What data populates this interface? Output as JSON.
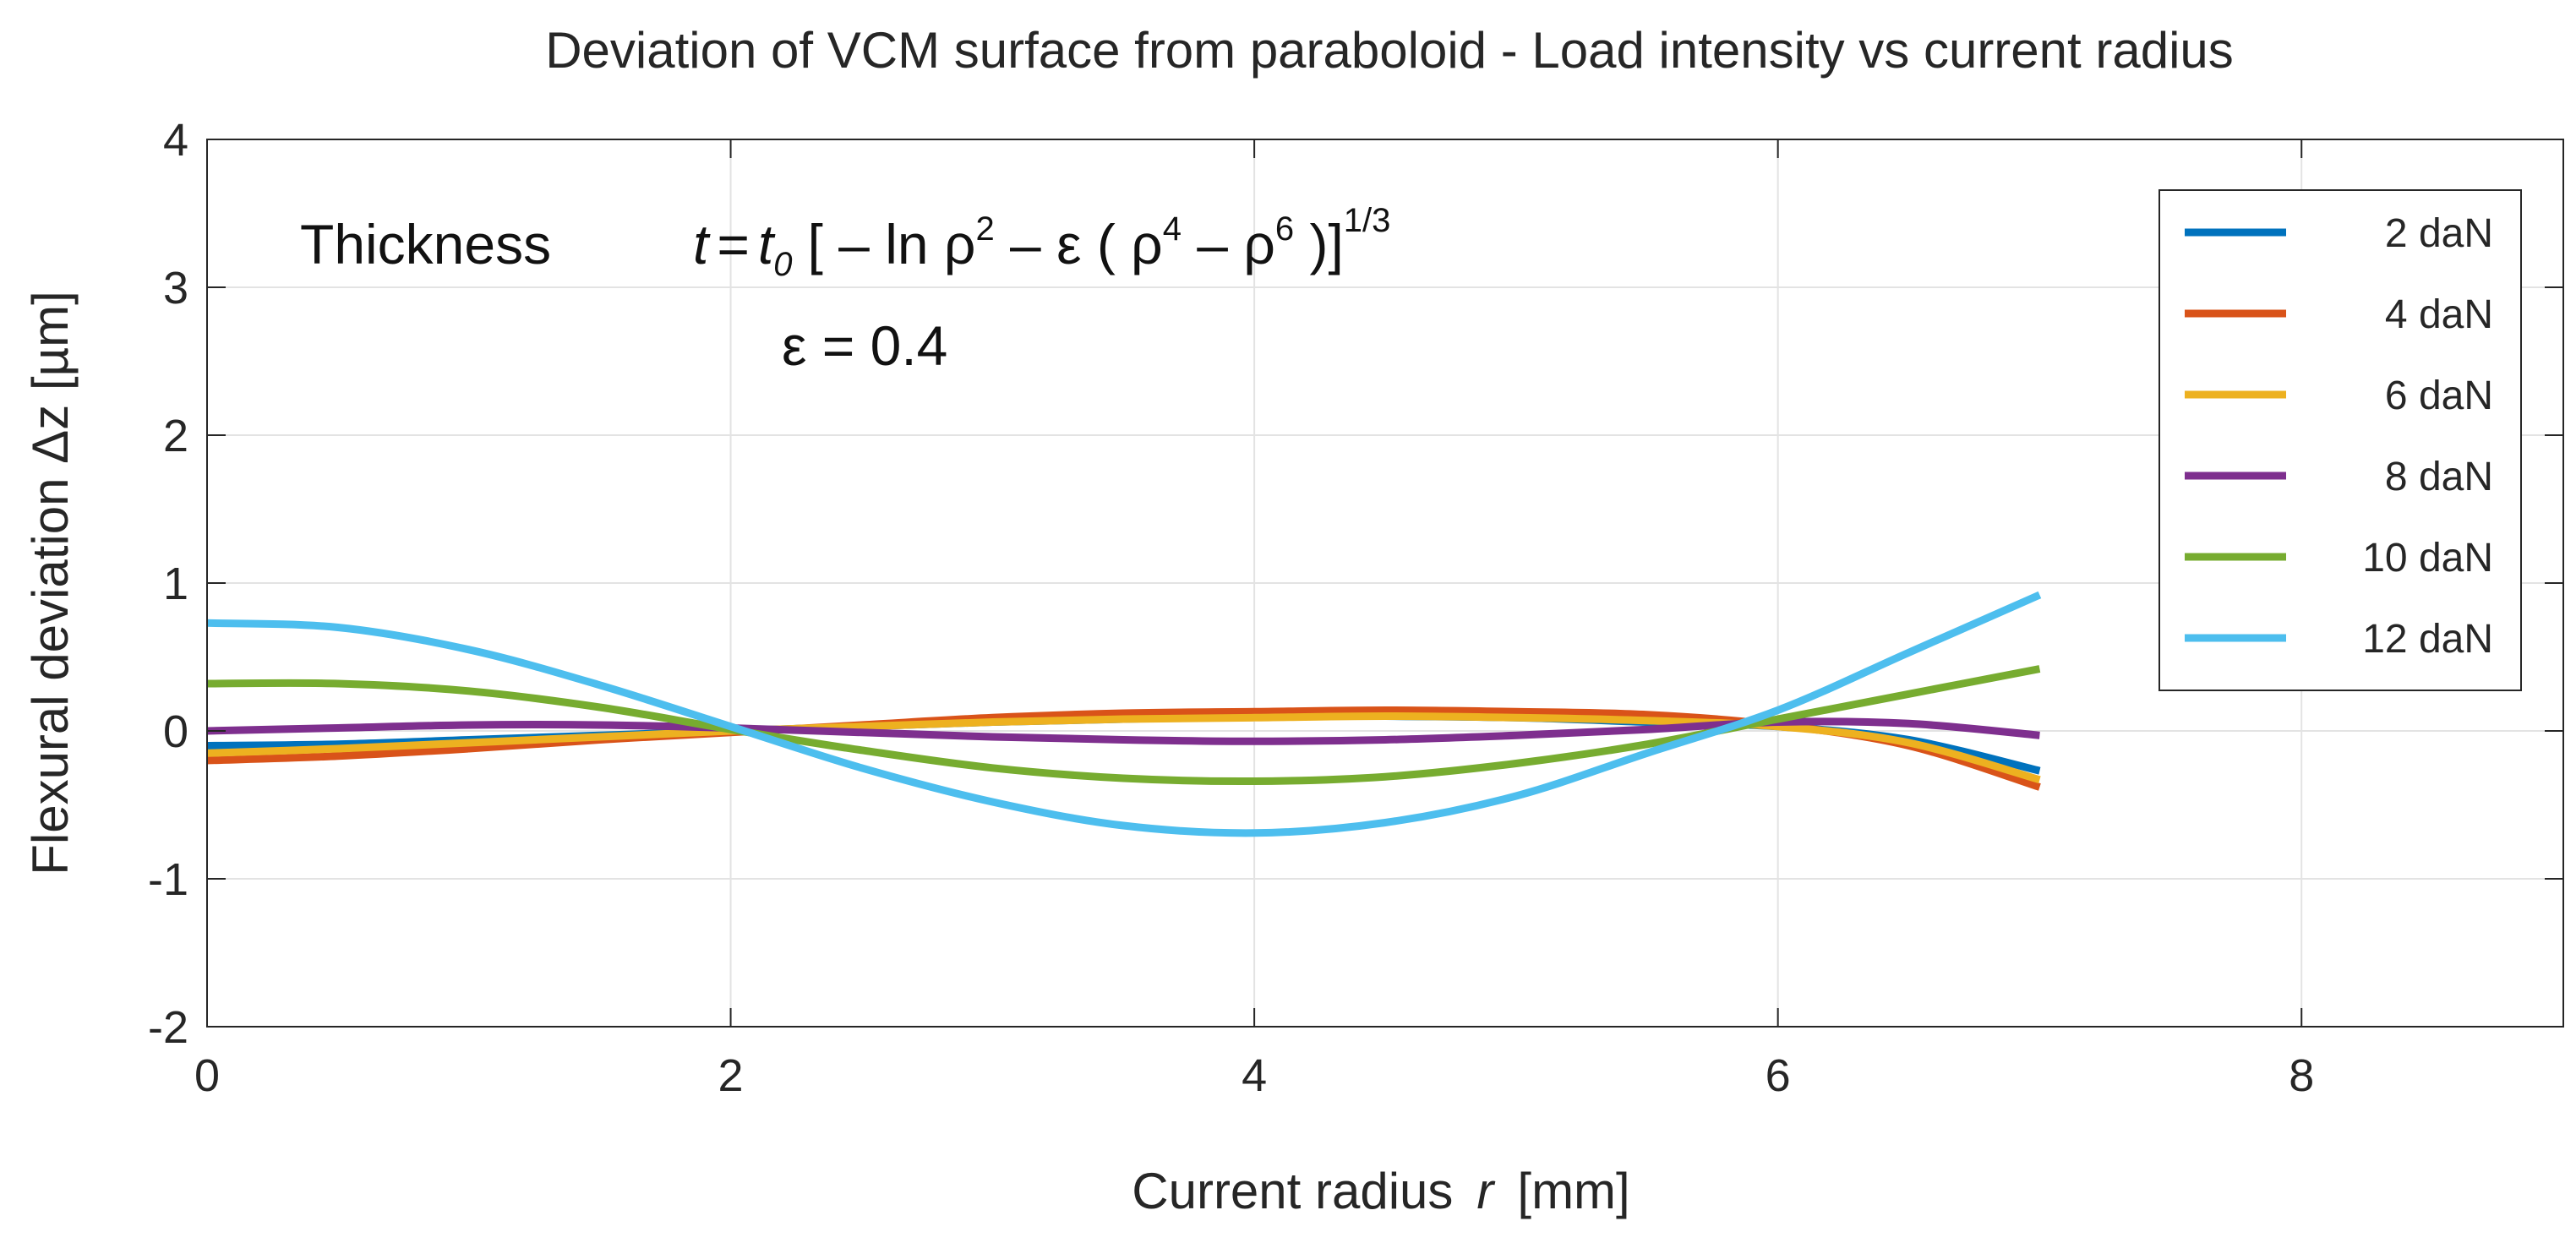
{
  "chart_data": {
    "type": "line",
    "title": "Deviation of VCM surface from paraboloid  -  Load intensity vs current radius",
    "xlabel": "Current radius",
    "xlabel_var": "r",
    "xlabel_unit": "[mm]",
    "ylabel": "Flexural deviation  Δz  [µm]",
    "xlim": [
      0,
      9
    ],
    "ylim": [
      -2,
      4
    ],
    "xticks": [
      0,
      2,
      4,
      6,
      8
    ],
    "yticks": [
      -2,
      -1,
      0,
      1,
      2,
      3,
      4
    ],
    "grid": true,
    "legend_position": "top-right",
    "x": [
      0,
      0.5,
      1,
      1.5,
      2,
      2.5,
      3,
      3.5,
      4,
      4.5,
      5,
      5.5,
      6,
      6.5,
      7
    ],
    "series": [
      {
        "name": "2 daN",
        "color": "#0072BD",
        "values": [
          -0.1,
          -0.09,
          -0.06,
          -0.03,
          0.0,
          0.03,
          0.06,
          0.08,
          0.1,
          0.1,
          0.09,
          0.06,
          0.03,
          -0.06,
          -0.27
        ]
      },
      {
        "name": "4 daN",
        "color": "#D95319",
        "values": [
          -0.2,
          -0.17,
          -0.12,
          -0.06,
          -0.01,
          0.04,
          0.09,
          0.12,
          0.13,
          0.14,
          0.13,
          0.11,
          0.04,
          -0.1,
          -0.38
        ]
      },
      {
        "name": "6 daN",
        "color": "#EDB120",
        "values": [
          -0.15,
          -0.12,
          -0.08,
          -0.04,
          0.0,
          0.03,
          0.06,
          0.08,
          0.09,
          0.1,
          0.09,
          0.07,
          0.03,
          -0.08,
          -0.33
        ]
      },
      {
        "name": "8 daN",
        "color": "#7E2F8E",
        "values": [
          0.0,
          0.02,
          0.04,
          0.04,
          0.02,
          -0.01,
          -0.04,
          -0.06,
          -0.07,
          -0.06,
          -0.03,
          0.01,
          0.06,
          0.05,
          -0.03
        ]
      },
      {
        "name": "10 daN",
        "color": "#77AC30",
        "values": [
          0.32,
          0.32,
          0.27,
          0.16,
          0.01,
          -0.13,
          -0.25,
          -0.32,
          -0.34,
          -0.31,
          -0.22,
          -0.09,
          0.08,
          0.25,
          0.42
        ]
      },
      {
        "name": "12 daN",
        "color": "#4DBEEE",
        "values": [
          0.73,
          0.7,
          0.55,
          0.31,
          0.03,
          -0.25,
          -0.48,
          -0.64,
          -0.69,
          -0.62,
          -0.44,
          -0.15,
          0.14,
          0.53,
          0.92
        ]
      }
    ],
    "annotation": {
      "thickness_label": "Thickness",
      "formula": {
        "t": "t",
        "eq": "=",
        "t0": "t",
        "t0_sub": "0",
        "open": "[ – ln ρ",
        "exp2": "2",
        "minus_eps": " – ε ( ρ",
        "exp4": "4",
        "minus_rho": " – ρ",
        "exp6": "6",
        "close": " )]",
        "power": "1/3"
      },
      "epsilon_line": "ε  =  0.4"
    }
  }
}
